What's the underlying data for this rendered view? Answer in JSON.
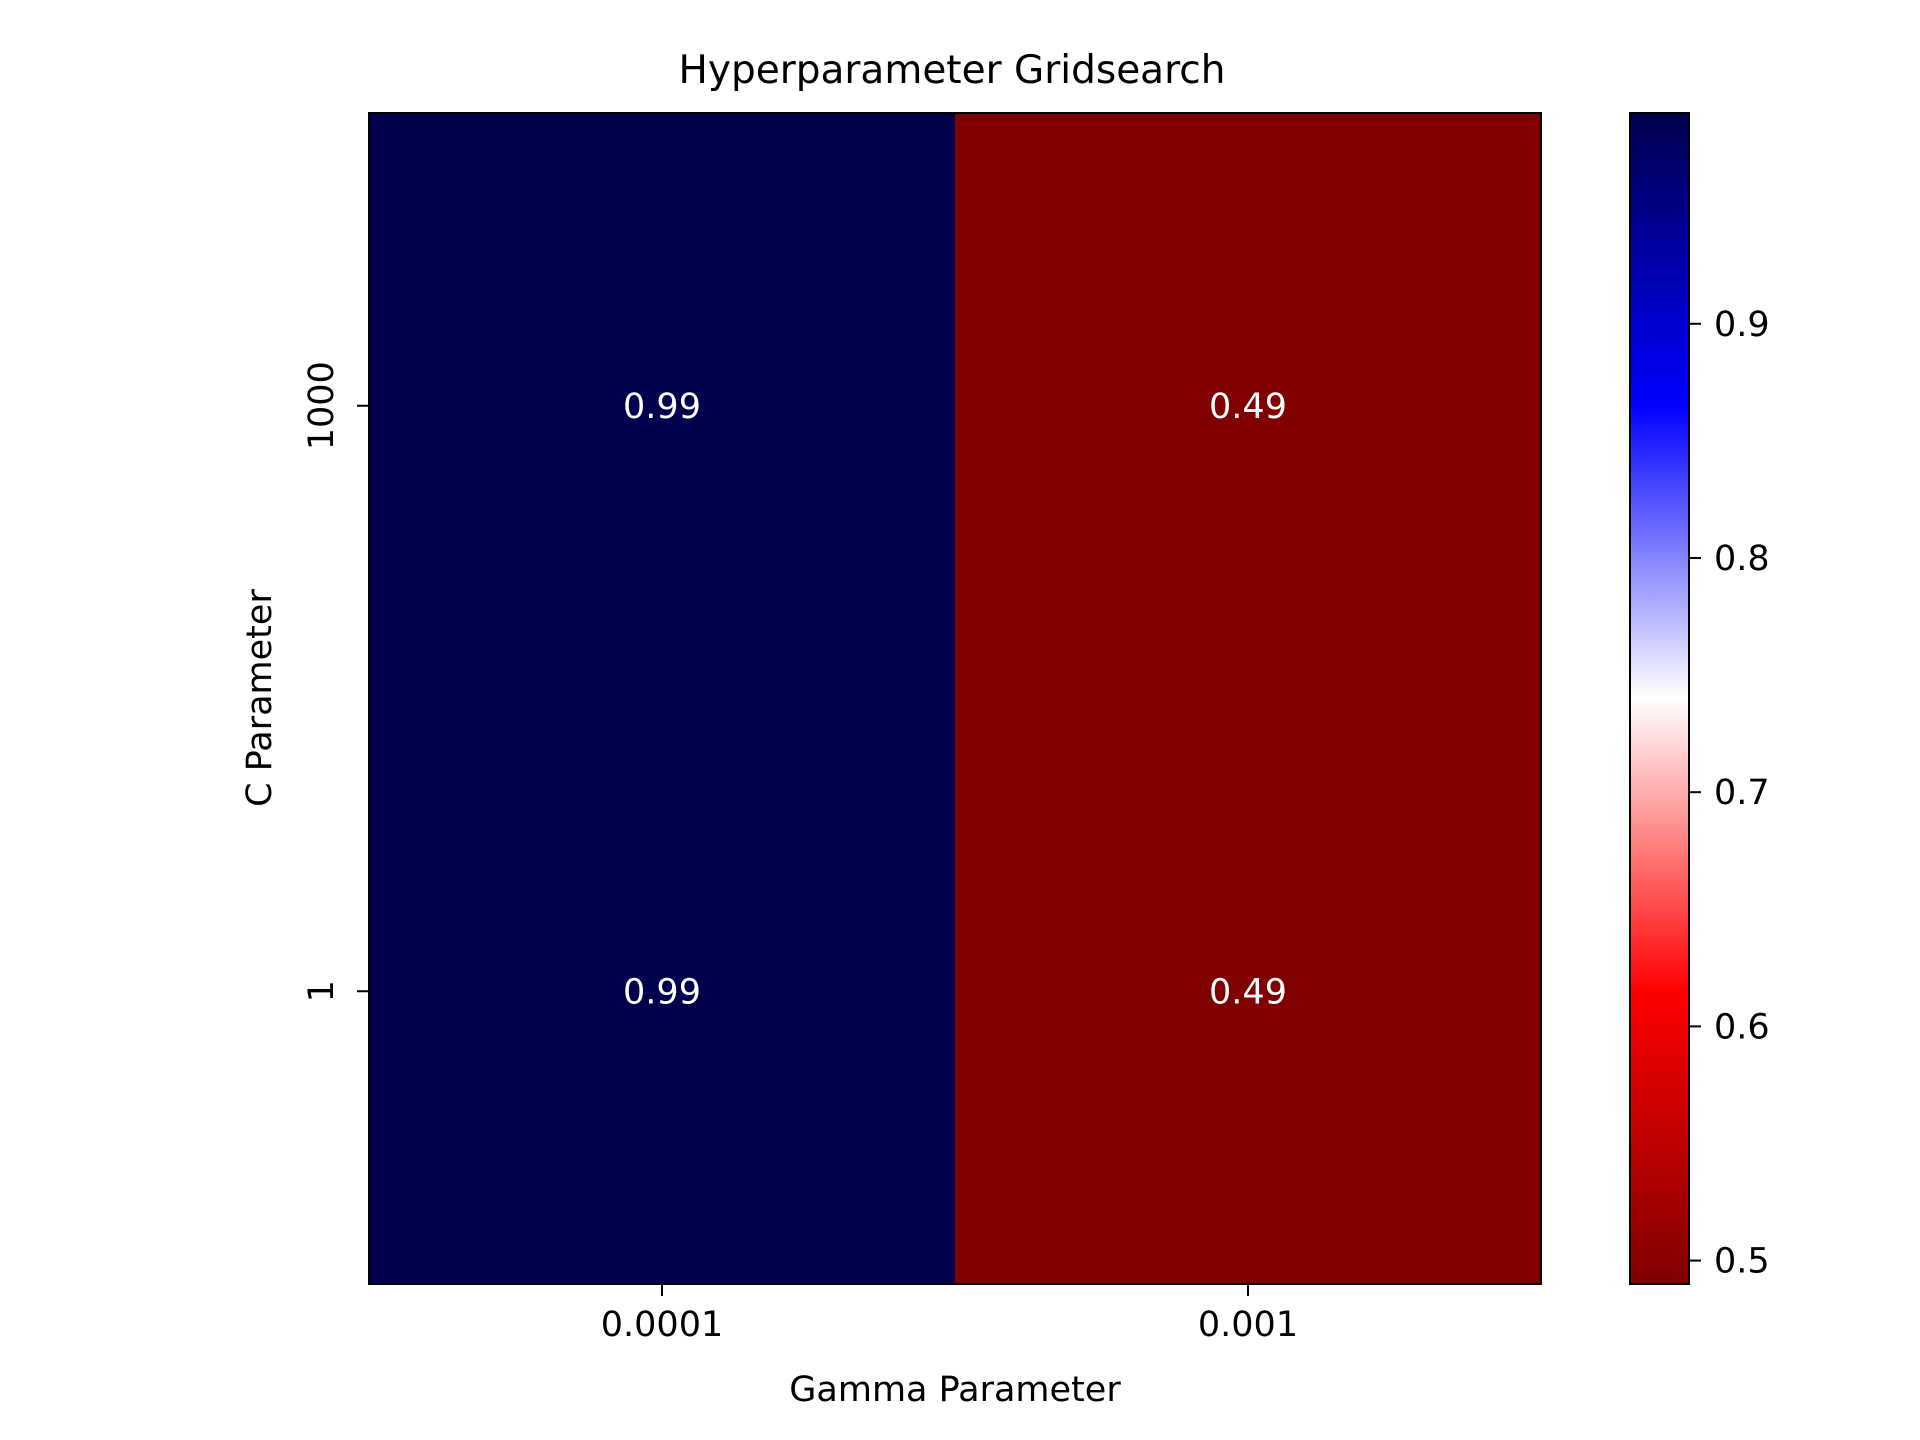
{
  "chart_data": {
    "type": "heatmap",
    "title": "Hyperparameter Gridsearch",
    "xlabel": "Gamma Parameter",
    "ylabel": "C Parameter",
    "x_categories": [
      "0.0001",
      "0.001"
    ],
    "y_categories": [
      "1000",
      "1"
    ],
    "values": [
      [
        0.99,
        0.49
      ],
      [
        0.99,
        0.49
      ]
    ],
    "cell_labels": [
      [
        "0.99",
        "0.49"
      ],
      [
        "0.99",
        "0.49"
      ]
    ],
    "colormap": "seismic_r",
    "colorbar": {
      "vmin": 0.49,
      "vmax": 0.99,
      "ticks": [
        0.5,
        0.6,
        0.7,
        0.8,
        0.9
      ],
      "tick_labels": [
        "0.5",
        "0.6",
        "0.7",
        "0.8",
        "0.9"
      ],
      "stops": [
        {
          "value": 0.0,
          "color": "#800000"
        },
        {
          "value": 0.25,
          "color": "#ff0000"
        },
        {
          "value": 0.5,
          "color": "#ffffff"
        },
        {
          "value": 0.75,
          "color": "#0000ff"
        },
        {
          "value": 1.0,
          "color": "#00004d"
        }
      ]
    },
    "grid": false,
    "colors": {
      "high_cell": "#00004a",
      "low_cell": "#7f0000",
      "cell_text": "#ffffff"
    }
  }
}
